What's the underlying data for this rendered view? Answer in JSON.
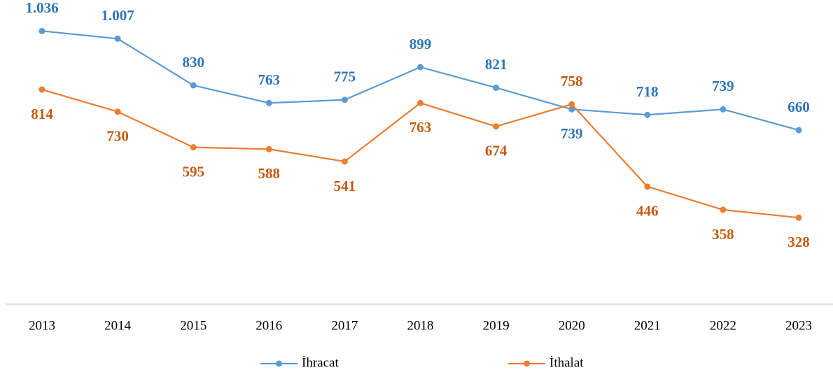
{
  "chart_data": {
    "type": "line",
    "categories": [
      "2013",
      "2014",
      "2015",
      "2016",
      "2017",
      "2018",
      "2019",
      "2020",
      "2021",
      "2022",
      "2023"
    ],
    "series": [
      {
        "name": "İhracat",
        "color": "#5b9bd5",
        "label_color": "#2e75b6",
        "values": [
          1036,
          1007,
          830,
          763,
          775,
          899,
          821,
          739,
          718,
          739,
          660
        ],
        "value_labels": [
          "1.036",
          "1.007",
          "830",
          "763",
          "775",
          "899",
          "821",
          "739",
          "718",
          "739",
          "660"
        ]
      },
      {
        "name": "İthalat",
        "color": "#ed7d31",
        "label_color": "#c55a11",
        "values": [
          814,
          730,
          595,
          588,
          541,
          763,
          674,
          758,
          446,
          358,
          328
        ]
      }
    ],
    "ylim": [
      0,
      1100
    ],
    "legend": "bottom"
  }
}
